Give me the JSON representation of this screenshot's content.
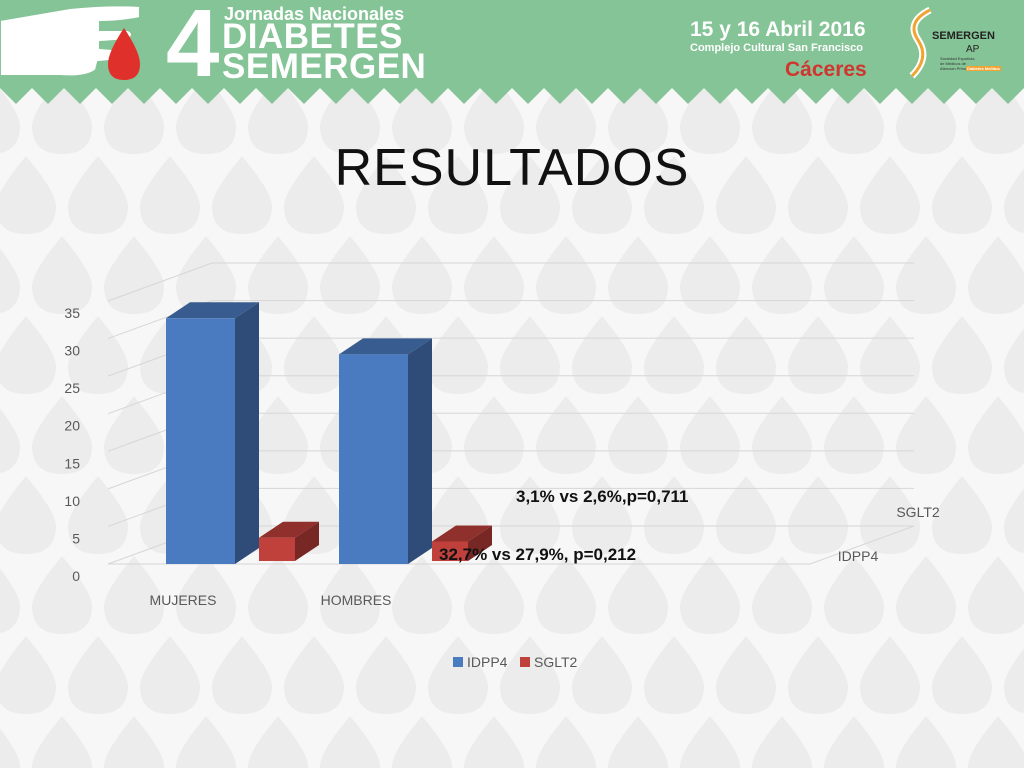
{
  "header": {
    "event_small": "Jornadas Nacionales",
    "event_number": "4",
    "event_line1": "DIABETES",
    "event_line2": "SEMERGEN",
    "date": "15 y 16 Abril 2016",
    "venue": "Complejo Cultural San Francisco",
    "city": "Cáceres",
    "logo_text": "SEMERGEN",
    "logo_sub": "AP",
    "logo_small": "Sociedad Española de Médicos de Atención Primaria",
    "logo_tag": "Diabetes Mellitus"
  },
  "title": "RESULTADOS",
  "annotations": {
    "sglt2_compare": "3,1% vs 2,6%,p=0,711",
    "idpp4_compare": "32,7% vs 27,9%, p=0,212"
  },
  "colors": {
    "header_green": "#85c497",
    "idpp4": "#4a7bc0",
    "sglt2": "#c0403b",
    "city_red": "#d0352f"
  },
  "chart_data": {
    "type": "bar",
    "style": "3d-clustered-column",
    "categories": [
      "MUJERES",
      "HOMBRES"
    ],
    "series": [
      {
        "name": "IDPP4",
        "values": [
          32.7,
          27.9
        ]
      },
      {
        "name": "SGLT2",
        "values": [
          3.1,
          2.6
        ]
      }
    ],
    "depth_axis_labels": [
      "SGLT2",
      "IDPP4"
    ],
    "y_ticks": [
      "0",
      "5",
      "10",
      "15",
      "20",
      "25",
      "30",
      "35"
    ],
    "ylim": [
      0,
      35
    ],
    "grid": true,
    "legend": "bottom"
  }
}
